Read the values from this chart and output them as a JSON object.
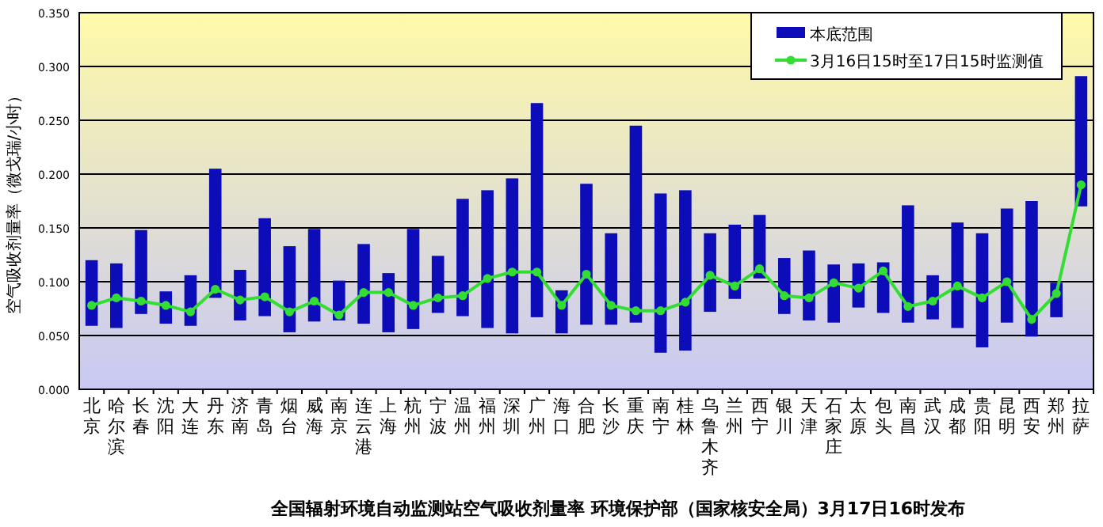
{
  "chart_data": {
    "type": "bar",
    "title": "全国辐射环境自动监测站空气吸收剂量率  环境保护部（国家核安全局）3月17日16时发布",
    "ylabel": "空气吸收剂量率（微戈瑞/小时）",
    "categories": [
      "北京",
      "哈尔滨",
      "长春",
      "沈阳",
      "大连",
      "丹东",
      "济南",
      "青岛",
      "烟台",
      "威海",
      "南京",
      "连云港",
      "上海",
      "杭州",
      "宁波",
      "温州",
      "福州",
      "深圳",
      "广州",
      "海口",
      "合肥",
      "长沙",
      "重庆",
      "南宁",
      "桂林",
      "乌鲁木齐",
      "兰州",
      "西宁",
      "银川",
      "天津",
      "石家庄",
      "太原",
      "包头",
      "南昌",
      "武汉",
      "成都",
      "贵阳",
      "昆明",
      "西安",
      "郑州",
      "拉萨"
    ],
    "series": [
      {
        "name": "本底范围",
        "color": "#0c0cb8",
        "base": [
          0.059,
          0.057,
          0.07,
          0.061,
          0.059,
          0.085,
          0.064,
          0.068,
          0.053,
          0.063,
          0.064,
          0.061,
          0.053,
          0.056,
          0.071,
          0.068,
          0.057,
          0.052,
          0.067,
          0.052,
          0.06,
          0.06,
          0.062,
          0.034,
          0.036,
          0.072,
          0.084,
          0.103,
          0.07,
          0.064,
          0.062,
          0.076,
          0.071,
          0.062,
          0.065,
          0.057,
          0.039,
          0.062,
          0.049,
          0.067,
          0.17
        ],
        "values": [
          0.061,
          0.06,
          0.078,
          0.03,
          0.047,
          0.12,
          0.047,
          0.091,
          0.08,
          0.086,
          0.037,
          0.074,
          0.055,
          0.093,
          0.053,
          0.109,
          0.128,
          0.144,
          0.199,
          0.04,
          0.131,
          0.085,
          0.183,
          0.148,
          0.149,
          0.073,
          0.069,
          0.059,
          0.052,
          0.065,
          0.054,
          0.041,
          0.047,
          0.109,
          0.041,
          0.098,
          0.106,
          0.106,
          0.126,
          0.032,
          0.121
        ]
      },
      {
        "name": "3月16日15时至17日15时监测值",
        "type": "line",
        "color": "#33dd33",
        "marker": "circle",
        "values": [
          0.078,
          0.085,
          0.082,
          0.078,
          0.072,
          0.093,
          0.083,
          0.086,
          0.072,
          0.082,
          0.069,
          0.09,
          0.09,
          0.078,
          0.085,
          0.087,
          0.103,
          0.109,
          0.109,
          0.078,
          0.107,
          0.078,
          0.073,
          0.073,
          0.081,
          0.106,
          0.096,
          0.112,
          0.087,
          0.085,
          0.099,
          0.094,
          0.11,
          0.077,
          0.082,
          0.096,
          0.085,
          0.1,
          0.065,
          0.089,
          0.19
        ]
      }
    ],
    "ylim": [
      0,
      0.35
    ],
    "yticks": [
      {
        "value": 0,
        "label": "0.000"
      },
      {
        "value": 0.05,
        "label": "0.050"
      },
      {
        "value": 0.1,
        "label": "0.100"
      },
      {
        "value": 0.15,
        "label": "0.150"
      },
      {
        "value": 0.2,
        "label": "0.200"
      },
      {
        "value": 0.25,
        "label": "0.250"
      },
      {
        "value": 0.3,
        "label": "0.300"
      },
      {
        "value": 0.35,
        "label": "0.350"
      }
    ],
    "grid": "y",
    "legend": "top right"
  }
}
